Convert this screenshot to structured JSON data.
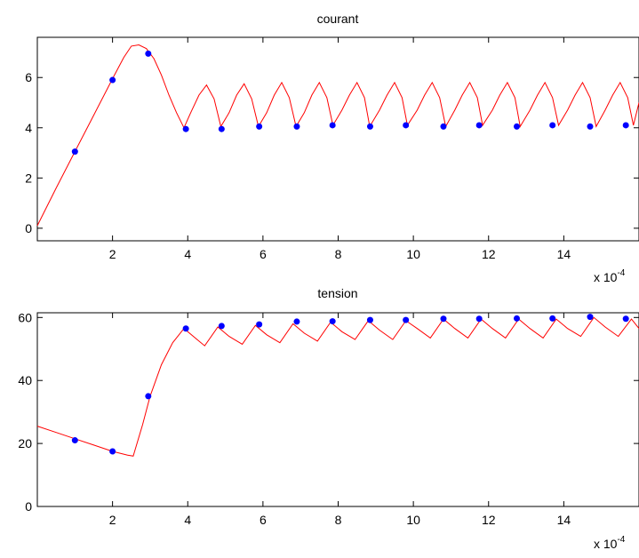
{
  "chart_data": [
    {
      "type": "line",
      "title": "courant",
      "xlabel": "",
      "ylabel": "",
      "x_exponent_label": {
        "base": "x 10",
        "exponent": "-4"
      },
      "xlim": [
        0,
        16
      ],
      "ylim": [
        -0.5,
        7.6
      ],
      "xticks": [
        2,
        4,
        6,
        8,
        10,
        12,
        14
      ],
      "yticks": [
        0,
        2,
        4,
        6
      ],
      "grid": false,
      "line_color": "#ff0000",
      "marker_color": "#0000ff",
      "series": [
        {
          "style": "line",
          "x": [
            0.0,
            0.5,
            1.0,
            1.5,
            2.0,
            2.3,
            2.5,
            2.7,
            2.9,
            3.1,
            3.3,
            3.5,
            3.7,
            3.9,
            4.08,
            4.3,
            4.5,
            4.7,
            4.88,
            5.1,
            5.3,
            5.5,
            5.7,
            5.88,
            6.1,
            6.3,
            6.5,
            6.7,
            6.88,
            7.1,
            7.3,
            7.5,
            7.7,
            7.86,
            8.1,
            8.3,
            8.5,
            8.7,
            8.84,
            9.1,
            9.3,
            9.5,
            9.7,
            9.84,
            10.1,
            10.3,
            10.5,
            10.7,
            10.86,
            11.1,
            11.3,
            11.5,
            11.7,
            11.84,
            12.1,
            12.3,
            12.5,
            12.7,
            12.84,
            13.1,
            13.3,
            13.5,
            13.7,
            13.86,
            14.1,
            14.3,
            14.5,
            14.7,
            14.86,
            15.1,
            15.3,
            15.5,
            15.7,
            15.85,
            16.0
          ],
          "y": [
            0.1,
            1.6,
            3.05,
            4.5,
            5.95,
            6.8,
            7.25,
            7.3,
            7.15,
            6.75,
            6.1,
            5.3,
            4.6,
            4.0,
            4.6,
            5.3,
            5.7,
            5.15,
            4.05,
            4.6,
            5.3,
            5.75,
            5.15,
            4.05,
            4.6,
            5.3,
            5.8,
            5.2,
            4.05,
            4.6,
            5.3,
            5.8,
            5.2,
            4.1,
            4.7,
            5.3,
            5.8,
            5.2,
            4.05,
            4.7,
            5.3,
            5.8,
            5.2,
            4.1,
            4.7,
            5.3,
            5.8,
            5.2,
            4.05,
            4.7,
            5.3,
            5.8,
            5.2,
            4.1,
            4.7,
            5.3,
            5.8,
            5.2,
            4.05,
            4.7,
            5.3,
            5.8,
            5.2,
            4.1,
            4.7,
            5.3,
            5.8,
            5.2,
            4.05,
            4.7,
            5.3,
            5.8,
            5.2,
            4.1,
            5.0
          ]
        },
        {
          "style": "markers",
          "x": [
            1.0,
            2.0,
            2.95,
            3.95,
            4.9,
            5.9,
            6.9,
            7.85,
            8.85,
            9.8,
            10.8,
            11.75,
            12.75,
            13.7,
            14.7,
            15.65
          ],
          "y": [
            3.05,
            5.9,
            6.95,
            3.95,
            3.95,
            4.05,
            4.05,
            4.1,
            4.05,
            4.1,
            4.05,
            4.1,
            4.05,
            4.1,
            4.05,
            4.1
          ]
        }
      ]
    },
    {
      "type": "line",
      "title": "tension",
      "xlabel": "",
      "ylabel": "",
      "x_exponent_label": {
        "base": "x 10",
        "exponent": "-4"
      },
      "xlim": [
        0,
        16
      ],
      "ylim": [
        0,
        61.5
      ],
      "xticks": [
        2,
        4,
        6,
        8,
        10,
        12,
        14
      ],
      "yticks": [
        0,
        20,
        40,
        60
      ],
      "grid": false,
      "line_color": "#ff0000",
      "marker_color": "#0000ff",
      "series": [
        {
          "style": "line",
          "x": [
            0.0,
            0.5,
            1.0,
            1.5,
            2.0,
            2.4,
            2.55,
            2.8,
            3.0,
            3.3,
            3.6,
            3.9,
            4.2,
            4.45,
            4.8,
            5.1,
            5.45,
            5.8,
            6.1,
            6.45,
            6.8,
            7.1,
            7.45,
            7.8,
            8.1,
            8.45,
            8.8,
            9.1,
            9.45,
            9.8,
            10.1,
            10.45,
            10.8,
            11.1,
            11.45,
            11.8,
            12.1,
            12.45,
            12.8,
            13.1,
            13.45,
            13.8,
            14.1,
            14.45,
            14.8,
            15.1,
            15.45,
            15.8,
            16.0
          ],
          "y": [
            25.5,
            23.5,
            21.5,
            19.5,
            17.5,
            16.3,
            16.0,
            26.0,
            35.0,
            45.0,
            52.0,
            56.5,
            53.5,
            51.0,
            57.0,
            54.0,
            51.5,
            57.5,
            54.5,
            52.0,
            58.0,
            55.0,
            52.5,
            58.5,
            55.5,
            53.0,
            59.0,
            56.0,
            53.0,
            59.0,
            56.5,
            53.5,
            59.5,
            56.5,
            53.5,
            59.5,
            56.5,
            53.5,
            59.5,
            56.5,
            53.5,
            59.5,
            56.5,
            54.0,
            60.0,
            57.0,
            54.0,
            59.5,
            56.5
          ]
        },
        {
          "style": "markers",
          "x": [
            1.0,
            2.0,
            2.95,
            3.95,
            4.9,
            5.9,
            6.9,
            7.85,
            8.85,
            9.8,
            10.8,
            11.75,
            12.75,
            13.7,
            14.7,
            15.65
          ],
          "y": [
            21.0,
            17.5,
            35.0,
            56.5,
            57.3,
            57.8,
            58.7,
            58.8,
            59.2,
            59.2,
            59.6,
            59.6,
            59.7,
            59.7,
            60.2,
            59.6
          ]
        }
      ]
    }
  ]
}
